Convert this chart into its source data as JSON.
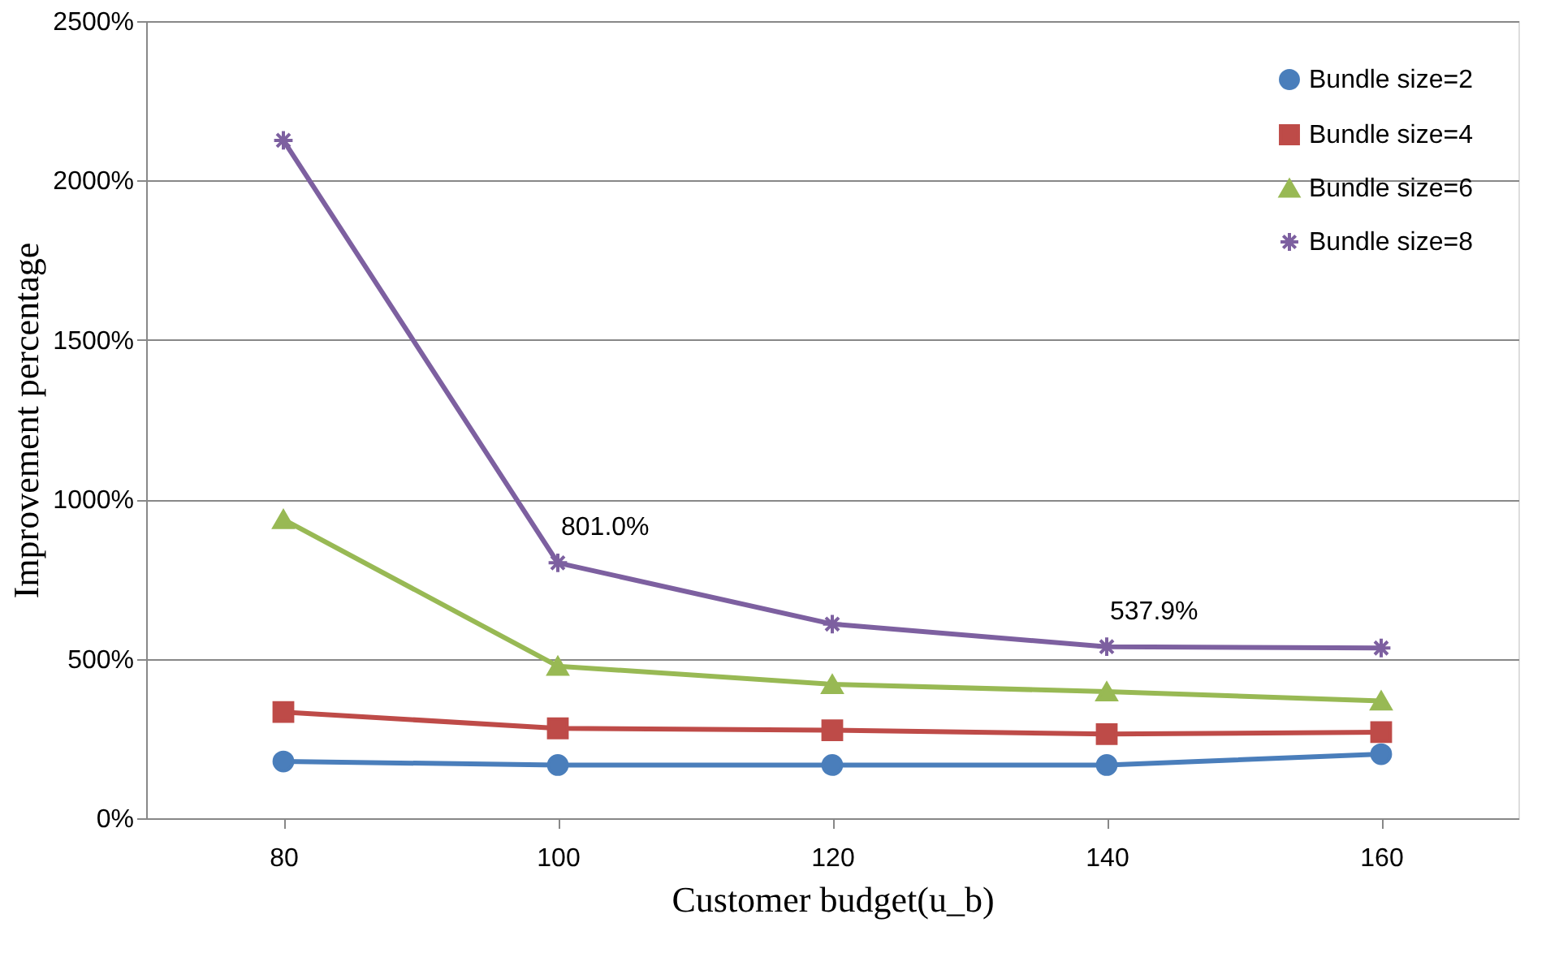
{
  "chart_data": {
    "type": "line",
    "xlabel": "Customer budget(u_b)",
    "ylabel": "Improvement percentage",
    "categories": [
      "80",
      "100",
      "120",
      "140",
      "160"
    ],
    "series": [
      {
        "name": "Bundle size=2",
        "color": "#4a7ebb",
        "marker": "circle",
        "values": [
          178,
          167,
          167,
          167,
          201
        ]
      },
      {
        "name": "Bundle size=4",
        "color": "#be4b48",
        "marker": "square",
        "values": [
          333,
          282,
          276,
          264,
          270
        ]
      },
      {
        "name": "Bundle size=6",
        "color": "#98b954",
        "marker": "triangle",
        "values": [
          937,
          477,
          420,
          397,
          368
        ]
      },
      {
        "name": "Bundle size=8",
        "color": "#7d60a0",
        "marker": "cross",
        "values": [
          2126,
          801,
          609,
          537.9,
          534
        ]
      }
    ],
    "ylim": [
      0,
      2500
    ],
    "yticks": [
      {
        "value": 0,
        "label": "0%"
      },
      {
        "value": 500,
        "label": "500%"
      },
      {
        "value": 1000,
        "label": "1000%"
      },
      {
        "value": 1500,
        "label": "1500%"
      },
      {
        "value": 2000,
        "label": "2000%"
      },
      {
        "value": 2500,
        "label": "2500%"
      }
    ],
    "annotations": [
      {
        "text": "801.0%",
        "x": "100",
        "y": 801
      },
      {
        "text": "537.9%",
        "x": "140",
        "y": 537.9
      }
    ],
    "grid": "y",
    "legend": "top right",
    "line_style": "solid"
  }
}
